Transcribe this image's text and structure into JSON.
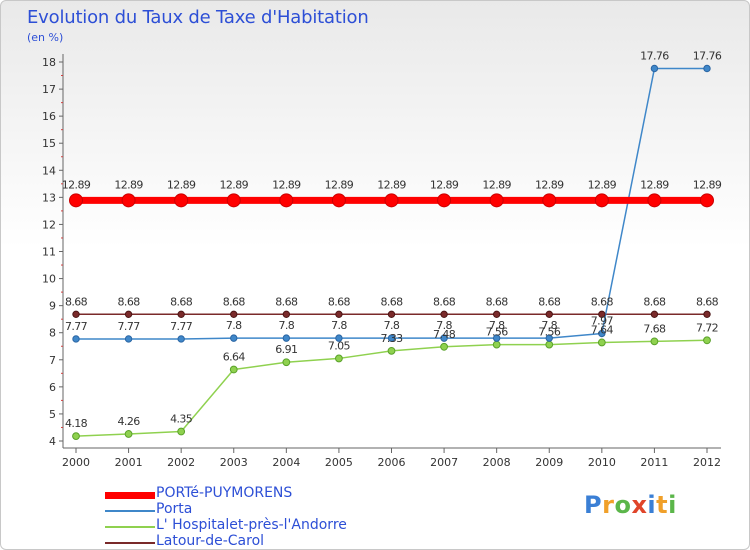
{
  "header": {
    "title": "Evolution du Taux de Taxe d'Habitation",
    "subtitle": "(en %)"
  },
  "logo": {
    "text": "Proxiti",
    "colors": [
      "#3a7fd5",
      "#f0a02a",
      "#5bb64a",
      "#e0452a",
      "#3a7fd5",
      "#f0a02a",
      "#5bb64a"
    ]
  },
  "chart_data": {
    "type": "line",
    "title": "Evolution du Taux de Taxe d'Habitation",
    "subtitle": "(en %)",
    "x": [
      "2000",
      "2001",
      "2002",
      "2003",
      "2004",
      "2005",
      "2006",
      "2007",
      "2008",
      "2009",
      "2010",
      "2011",
      "2012"
    ],
    "ylim": [
      4,
      18
    ],
    "yticks": [
      4,
      5,
      6,
      7,
      8,
      9,
      10,
      11,
      12,
      13,
      14,
      15,
      16,
      17,
      18
    ],
    "grid": false,
    "legend_position": "bottom-left",
    "series": [
      {
        "name": "PORTé-PUYMORENS",
        "color": "#ff0000",
        "values": [
          12.89,
          12.89,
          12.89,
          12.89,
          12.89,
          12.89,
          12.89,
          12.89,
          12.89,
          12.89,
          12.89,
          12.89,
          12.89
        ],
        "labels": [
          "12.89",
          "12.89",
          "12.89",
          "12.89",
          "12.89",
          "12.89",
          "12.89",
          "12.89",
          "12.89",
          "12.89",
          "12.89",
          "12.89",
          "12.89"
        ]
      },
      {
        "name": "Porta",
        "color": "#3f87c9",
        "values": [
          7.77,
          7.77,
          7.77,
          7.8,
          7.8,
          7.8,
          7.8,
          7.8,
          7.8,
          7.8,
          7.97,
          17.76,
          17.76
        ],
        "labels": [
          "7.77",
          "7.77",
          "7.77",
          "7.8",
          "7.8",
          "7.8",
          "7.8",
          "7.8",
          "7.8",
          "7.8",
          "7.97",
          "17.76",
          "17.76"
        ]
      },
      {
        "name": "L' Hospitalet-près-l'Andorre",
        "color": "#8fd14f",
        "values": [
          4.18,
          4.26,
          4.35,
          6.64,
          6.91,
          7.05,
          7.33,
          7.48,
          7.56,
          7.56,
          7.64,
          7.68,
          7.72
        ],
        "labels": [
          "4.18",
          "4.26",
          "4.35",
          "6.64",
          "6.91",
          "7.05",
          "7.33",
          "7.48",
          "7.56",
          "7.56",
          "7.64",
          "7.68",
          "7.72"
        ]
      },
      {
        "name": "Latour-de-Carol",
        "color": "#7a2a2a",
        "values": [
          8.68,
          8.68,
          8.68,
          8.68,
          8.68,
          8.68,
          8.68,
          8.68,
          8.68,
          8.68,
          8.68,
          8.68,
          8.68
        ],
        "labels": [
          "8.68",
          "8.68",
          "8.68",
          "8.68",
          "8.68",
          "8.68",
          "8.68",
          "8.68",
          "8.68",
          "8.68",
          "8.68",
          "8.68",
          "8.68"
        ]
      }
    ]
  }
}
